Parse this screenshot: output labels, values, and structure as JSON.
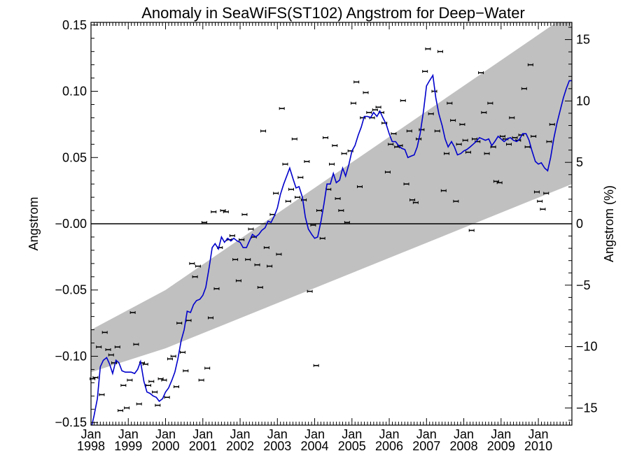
{
  "chart_data": {
    "type": "scatter",
    "title": "Anomaly in SeaWiFS(ST102) Angstrom for Deep−Water",
    "ylabel": "Angstrom",
    "y2label": "Angstrom (%)",
    "xlabel": "",
    "xlim": [
      1998.0,
      2010.9
    ],
    "ylim": [
      -0.152,
      0.152
    ],
    "y2lim": [
      -16.4,
      16.4
    ],
    "grid": false,
    "legend": "none",
    "zero_line": true,
    "colors": {
      "smoothed_line": "#0000cc",
      "trend_band": "#c0c0c0",
      "points": "#000000",
      "axes": "#000000"
    },
    "x_ticks": [
      {
        "pos": 1998,
        "line1": "Jan",
        "line2": "1998"
      },
      {
        "pos": 1999,
        "line1": "Jan",
        "line2": "1999"
      },
      {
        "pos": 2000,
        "line1": "Jan",
        "line2": "2000"
      },
      {
        "pos": 2001,
        "line1": "Jan",
        "line2": "2001"
      },
      {
        "pos": 2002,
        "line1": "Jan",
        "line2": "2002"
      },
      {
        "pos": 2003,
        "line1": "Jan",
        "line2": "2003"
      },
      {
        "pos": 2004,
        "line1": "Jan",
        "line2": "2004"
      },
      {
        "pos": 2005,
        "line1": "Jan",
        "line2": "2005"
      },
      {
        "pos": 2006,
        "line1": "Jan",
        "line2": "2006"
      },
      {
        "pos": 2007,
        "line1": "Jan",
        "line2": "2007"
      },
      {
        "pos": 2008,
        "line1": "Jan",
        "line2": "2008"
      },
      {
        "pos": 2009,
        "line1": "Jan",
        "line2": "2009"
      },
      {
        "pos": 2010,
        "line1": "Jan",
        "line2": "2010"
      }
    ],
    "y_ticks": [
      {
        "value": 0.15,
        "label": "0.15"
      },
      {
        "value": 0.1,
        "label": "0.10"
      },
      {
        "value": 0.05,
        "label": "0.05"
      },
      {
        "value": 0.0,
        "label": "−0.00"
      },
      {
        "value": -0.05,
        "label": "−0.05"
      },
      {
        "value": -0.1,
        "label": "−0.10"
      },
      {
        "value": -0.15,
        "label": "−0.15"
      }
    ],
    "y2_ticks": [
      {
        "value": 15,
        "label": "15"
      },
      {
        "value": 10,
        "label": "10"
      },
      {
        "value": 5,
        "label": "5"
      },
      {
        "value": 0,
        "label": "0"
      },
      {
        "value": -5,
        "label": "−5"
      },
      {
        "value": -10,
        "label": "−10"
      },
      {
        "value": -15,
        "label": "−15"
      }
    ],
    "trend_band": {
      "x": [
        1998.0,
        2000.0,
        2010.9
      ],
      "upper": [
        -0.08,
        -0.05,
        0.16
      ],
      "lower": [
        -0.112,
        -0.094,
        0.03
      ]
    },
    "monthly_anomaly": [
      [
        1998.04,
        -0.117
      ],
      [
        1998.12,
        -0.116
      ],
      [
        1998.21,
        -0.093
      ],
      [
        1998.29,
        -0.129
      ],
      [
        1998.37,
        -0.082
      ],
      [
        1998.46,
        -0.095
      ],
      [
        1998.54,
        -0.099
      ],
      [
        1998.62,
        -0.105
      ],
      [
        1998.71,
        -0.093
      ],
      [
        1998.79,
        -0.141
      ],
      [
        1998.87,
        -0.122
      ],
      [
        1998.96,
        -0.139
      ],
      [
        1999.04,
        -0.118
      ],
      [
        1999.12,
        -0.067
      ],
      [
        1999.21,
        -0.091
      ],
      [
        1999.29,
        -0.136
      ],
      [
        1999.37,
        -0.105
      ],
      [
        1999.46,
        -0.106
      ],
      [
        1999.54,
        -0.122
      ],
      [
        1999.62,
        -0.119
      ],
      [
        1999.71,
        -0.127
      ],
      [
        1999.79,
        -0.137
      ],
      [
        1999.87,
        -0.117
      ],
      [
        1999.96,
        -0.118
      ],
      [
        2000.04,
        -0.131
      ],
      [
        2000.12,
        -0.102
      ],
      [
        2000.21,
        -0.1
      ],
      [
        2000.29,
        -0.123
      ],
      [
        2000.37,
        -0.075
      ],
      [
        2000.46,
        -0.097
      ],
      [
        2000.54,
        -0.111
      ],
      [
        2000.62,
        -0.073
      ],
      [
        2000.71,
        -0.03
      ],
      [
        2000.79,
        -0.04
      ],
      [
        2000.87,
        -0.032
      ],
      [
        2000.96,
        -0.118
      ],
      [
        2001.04,
        0.001
      ],
      [
        2001.12,
        -0.109
      ],
      [
        2001.21,
        -0.071
      ],
      [
        2001.29,
        0.009
      ],
      [
        2001.37,
        -0.049
      ],
      [
        2001.46,
        -0.018
      ],
      [
        2001.54,
        0.01
      ],
      [
        2001.62,
        0.009
      ],
      [
        2001.71,
        -0.012
      ],
      [
        2001.79,
        -0.009
      ],
      [
        2001.87,
        -0.027
      ],
      [
        2001.96,
        -0.043
      ],
      [
        2002.04,
        -0.012
      ],
      [
        2002.12,
        0.007
      ],
      [
        2002.21,
        -0.027
      ],
      [
        2002.29,
        -0.004
      ],
      [
        2002.37,
        -0.01
      ],
      [
        2002.46,
        -0.031
      ],
      [
        2002.54,
        -0.048
      ],
      [
        2002.62,
        0.07
      ],
      [
        2002.71,
        -0.018
      ],
      [
        2002.79,
        -0.032
      ],
      [
        2002.87,
        0.007
      ],
      [
        2002.96,
        0.023
      ],
      [
        2003.04,
        -0.023
      ],
      [
        2003.12,
        0.087
      ],
      [
        2003.21,
        0.045
      ],
      [
        2003.29,
        0.017
      ],
      [
        2003.37,
        0.026
      ],
      [
        2003.46,
        0.064
      ],
      [
        2003.54,
        0.02
      ],
      [
        2003.62,
        0.035
      ],
      [
        2003.71,
        0.018
      ],
      [
        2003.79,
        0.047
      ],
      [
        2003.87,
        -0.051
      ],
      [
        2003.96,
        -0.001
      ],
      [
        2004.04,
        -0.107
      ],
      [
        2004.12,
        0.01
      ],
      [
        2004.21,
        -0.011
      ],
      [
        2004.29,
        0.065
      ],
      [
        2004.37,
        0.026
      ],
      [
        2004.46,
        0.045
      ],
      [
        2004.54,
        0.059
      ],
      [
        2004.62,
        0.019
      ],
      [
        2004.71,
        0.01
      ],
      [
        2004.79,
        0.053
      ],
      [
        2004.87,
        0.001
      ],
      [
        2004.96,
        0.055
      ],
      [
        2005.04,
        0.091
      ],
      [
        2005.12,
        0.107
      ],
      [
        2005.21,
        0.028
      ],
      [
        2005.29,
        0.08
      ],
      [
        2005.37,
        0.099
      ],
      [
        2005.46,
        0.084
      ],
      [
        2005.54,
        0.08
      ],
      [
        2005.62,
        0.086
      ],
      [
        2005.71,
        0.088
      ],
      [
        2005.79,
        0.084
      ],
      [
        2005.87,
        0.076
      ],
      [
        2005.96,
        0.039
      ],
      [
        2006.04,
        0.06
      ],
      [
        2006.12,
        0.068
      ],
      [
        2006.21,
        0.058
      ],
      [
        2006.29,
        0.059
      ],
      [
        2006.37,
        0.093
      ],
      [
        2006.46,
        0.03
      ],
      [
        2006.54,
        0.07
      ],
      [
        2006.62,
        0.018
      ],
      [
        2006.71,
        0.016
      ],
      [
        2006.79,
        0.064
      ],
      [
        2006.87,
        0.071
      ],
      [
        2006.96,
        0.115
      ],
      [
        2007.04,
        0.132
      ],
      [
        2007.12,
        0.083
      ],
      [
        2007.21,
        0.1
      ],
      [
        2007.29,
        0.07
      ],
      [
        2007.37,
        0.13
      ],
      [
        2007.46,
        0.025
      ],
      [
        2007.54,
        0.053
      ],
      [
        2007.62,
        0.091
      ],
      [
        2007.71,
        0.078
      ],
      [
        2007.79,
        0.017
      ],
      [
        2007.87,
        0.06
      ],
      [
        2007.96,
        0.075
      ],
      [
        2008.04,
        0.063
      ],
      [
        2008.12,
        0.054
      ],
      [
        2008.21,
        -0.005
      ],
      [
        2008.29,
        0.064
      ],
      [
        2008.37,
        0.062
      ],
      [
        2008.46,
        0.114
      ],
      [
        2008.54,
        0.084
      ],
      [
        2008.62,
        0.053
      ],
      [
        2008.71,
        0.091
      ],
      [
        2008.79,
        0.058
      ],
      [
        2008.87,
        0.032
      ],
      [
        2008.96,
        0.031
      ],
      [
        2009.04,
        0.066
      ],
      [
        2009.12,
        0.064
      ],
      [
        2009.21,
        0.06
      ],
      [
        2009.29,
        0.08
      ],
      [
        2009.37,
        0.065
      ],
      [
        2009.46,
        0.063
      ],
      [
        2009.54,
        0.067
      ],
      [
        2009.62,
        0.102
      ],
      [
        2009.71,
        0.058
      ],
      [
        2009.79,
        0.12
      ],
      [
        2009.87,
        0.066
      ],
      [
        2009.96,
        0.024
      ],
      [
        2010.04,
        0.017
      ],
      [
        2010.12,
        0.011
      ],
      [
        2010.21,
        0.023
      ],
      [
        2010.29,
        0.062
      ],
      [
        2010.37,
        0.075
      ]
    ],
    "smoothed": [
      [
        1998.0,
        -0.155
      ],
      [
        1998.08,
        -0.145
      ],
      [
        1998.17,
        -0.132
      ],
      [
        1998.25,
        -0.108
      ],
      [
        1998.33,
        -0.103
      ],
      [
        1998.42,
        -0.101
      ],
      [
        1998.5,
        -0.106
      ],
      [
        1998.58,
        -0.113
      ],
      [
        1998.67,
        -0.103
      ],
      [
        1998.75,
        -0.105
      ],
      [
        1998.83,
        -0.111
      ],
      [
        1998.92,
        -0.112
      ],
      [
        1999.0,
        -0.112
      ],
      [
        1999.08,
        -0.112
      ],
      [
        1999.17,
        -0.113
      ],
      [
        1999.25,
        -0.11
      ],
      [
        1999.33,
        -0.104
      ],
      [
        1999.42,
        -0.119
      ],
      [
        1999.5,
        -0.127
      ],
      [
        1999.58,
        -0.128
      ],
      [
        1999.67,
        -0.13
      ],
      [
        1999.75,
        -0.131
      ],
      [
        1999.83,
        -0.134
      ],
      [
        1999.92,
        -0.132
      ],
      [
        2000.0,
        -0.127
      ],
      [
        2000.08,
        -0.124
      ],
      [
        2000.17,
        -0.118
      ],
      [
        2000.25,
        -0.112
      ],
      [
        2000.33,
        -0.102
      ],
      [
        2000.42,
        -0.088
      ],
      [
        2000.5,
        -0.08
      ],
      [
        2000.58,
        -0.066
      ],
      [
        2000.67,
        -0.067
      ],
      [
        2000.75,
        -0.061
      ],
      [
        2000.83,
        -0.058
      ],
      [
        2000.92,
        -0.057
      ],
      [
        2001.0,
        -0.054
      ],
      [
        2001.08,
        -0.048
      ],
      [
        2001.17,
        -0.033
      ],
      [
        2001.25,
        -0.018
      ],
      [
        2001.33,
        -0.015
      ],
      [
        2001.42,
        -0.019
      ],
      [
        2001.5,
        -0.01
      ],
      [
        2001.58,
        -0.014
      ],
      [
        2001.67,
        -0.011
      ],
      [
        2001.75,
        -0.013
      ],
      [
        2001.83,
        -0.011
      ],
      [
        2001.92,
        -0.013
      ],
      [
        2002.0,
        -0.014
      ],
      [
        2002.08,
        -0.018
      ],
      [
        2002.17,
        -0.018
      ],
      [
        2002.25,
        -0.013
      ],
      [
        2002.33,
        -0.008
      ],
      [
        2002.42,
        -0.01
      ],
      [
        2002.5,
        -0.008
      ],
      [
        2002.58,
        -0.005
      ],
      [
        2002.67,
        -0.003
      ],
      [
        2002.75,
        0.002
      ],
      [
        2002.83,
        0.001
      ],
      [
        2002.92,
        0.006
      ],
      [
        2003.0,
        0.012
      ],
      [
        2003.08,
        0.022
      ],
      [
        2003.17,
        0.03
      ],
      [
        2003.25,
        0.036
      ],
      [
        2003.33,
        0.042
      ],
      [
        2003.42,
        0.034
      ],
      [
        2003.5,
        0.027
      ],
      [
        2003.58,
        0.028
      ],
      [
        2003.67,
        0.02
      ],
      [
        2003.75,
        0.005
      ],
      [
        2003.83,
        -0.004
      ],
      [
        2003.92,
        -0.008
      ],
      [
        2004.0,
        -0.011
      ],
      [
        2004.08,
        -0.01
      ],
      [
        2004.17,
        0.002
      ],
      [
        2004.25,
        0.015
      ],
      [
        2004.33,
        0.03
      ],
      [
        2004.42,
        0.03
      ],
      [
        2004.5,
        0.038
      ],
      [
        2004.58,
        0.031
      ],
      [
        2004.67,
        0.033
      ],
      [
        2004.75,
        0.042
      ],
      [
        2004.83,
        0.036
      ],
      [
        2004.92,
        0.045
      ],
      [
        2005.0,
        0.055
      ],
      [
        2005.08,
        0.059
      ],
      [
        2005.17,
        0.067
      ],
      [
        2005.25,
        0.073
      ],
      [
        2005.33,
        0.081
      ],
      [
        2005.42,
        0.081
      ],
      [
        2005.5,
        0.08
      ],
      [
        2005.58,
        0.084
      ],
      [
        2005.67,
        0.081
      ],
      [
        2005.75,
        0.085
      ],
      [
        2005.83,
        0.08
      ],
      [
        2005.92,
        0.075
      ],
      [
        2006.0,
        0.068
      ],
      [
        2006.08,
        0.062
      ],
      [
        2006.17,
        0.062
      ],
      [
        2006.25,
        0.059
      ],
      [
        2006.33,
        0.057
      ],
      [
        2006.42,
        0.056
      ],
      [
        2006.5,
        0.05
      ],
      [
        2006.58,
        0.051
      ],
      [
        2006.67,
        0.052
      ],
      [
        2006.75,
        0.058
      ],
      [
        2006.83,
        0.068
      ],
      [
        2006.92,
        0.085
      ],
      [
        2007.0,
        0.104
      ],
      [
        2007.08,
        0.108
      ],
      [
        2007.17,
        0.112
      ],
      [
        2007.25,
        0.095
      ],
      [
        2007.33,
        0.083
      ],
      [
        2007.42,
        0.074
      ],
      [
        2007.5,
        0.064
      ],
      [
        2007.58,
        0.058
      ],
      [
        2007.67,
        0.062
      ],
      [
        2007.75,
        0.058
      ],
      [
        2007.83,
        0.052
      ],
      [
        2007.92,
        0.053
      ],
      [
        2008.0,
        0.055
      ],
      [
        2008.08,
        0.056
      ],
      [
        2008.17,
        0.058
      ],
      [
        2008.25,
        0.06
      ],
      [
        2008.33,
        0.062
      ],
      [
        2008.42,
        0.065
      ],
      [
        2008.5,
        0.064
      ],
      [
        2008.58,
        0.063
      ],
      [
        2008.67,
        0.064
      ],
      [
        2008.75,
        0.059
      ],
      [
        2008.83,
        0.062
      ],
      [
        2008.92,
        0.066
      ],
      [
        2009.0,
        0.064
      ],
      [
        2009.08,
        0.062
      ],
      [
        2009.17,
        0.064
      ],
      [
        2009.25,
        0.065
      ],
      [
        2009.33,
        0.063
      ],
      [
        2009.42,
        0.062
      ],
      [
        2009.5,
        0.064
      ],
      [
        2009.58,
        0.068
      ],
      [
        2009.67,
        0.068
      ],
      [
        2009.75,
        0.063
      ],
      [
        2009.83,
        0.055
      ],
      [
        2009.92,
        0.047
      ],
      [
        2010.0,
        0.045
      ],
      [
        2010.08,
        0.046
      ],
      [
        2010.17,
        0.042
      ],
      [
        2010.25,
        0.04
      ],
      [
        2010.33,
        0.05
      ],
      [
        2010.42,
        0.065
      ],
      [
        2010.5,
        0.076
      ],
      [
        2010.58,
        0.085
      ],
      [
        2010.67,
        0.095
      ],
      [
        2010.75,
        0.102
      ],
      [
        2010.83,
        0.108
      ],
      [
        2010.9,
        0.108
      ]
    ]
  }
}
